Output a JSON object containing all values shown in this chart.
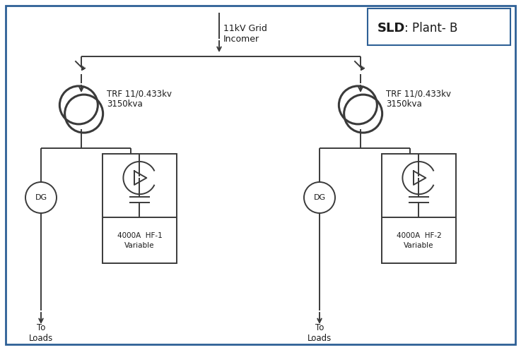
{
  "title_bold": "SLD",
  "title_rest": ": Plant- B",
  "grid_label": "11kV Grid\nIncomer",
  "trf_label": "TRF 11/0.433kv\n3150kva",
  "trf_label2": "TRF 11/0.433kv\n3150kva",
  "hf1_label": "4000A  HF-1\nVariable",
  "hf2_label": "4000A  HF-2\nVariable",
  "dg_label": "DG",
  "loads_label": "To\nLoads",
  "bg_color": "#ffffff",
  "border_color": "#2e6096",
  "line_color": "#3a3a3a",
  "text_color": "#1a1a1a",
  "figsize": [
    7.37,
    4.96
  ],
  "dpi": 100
}
